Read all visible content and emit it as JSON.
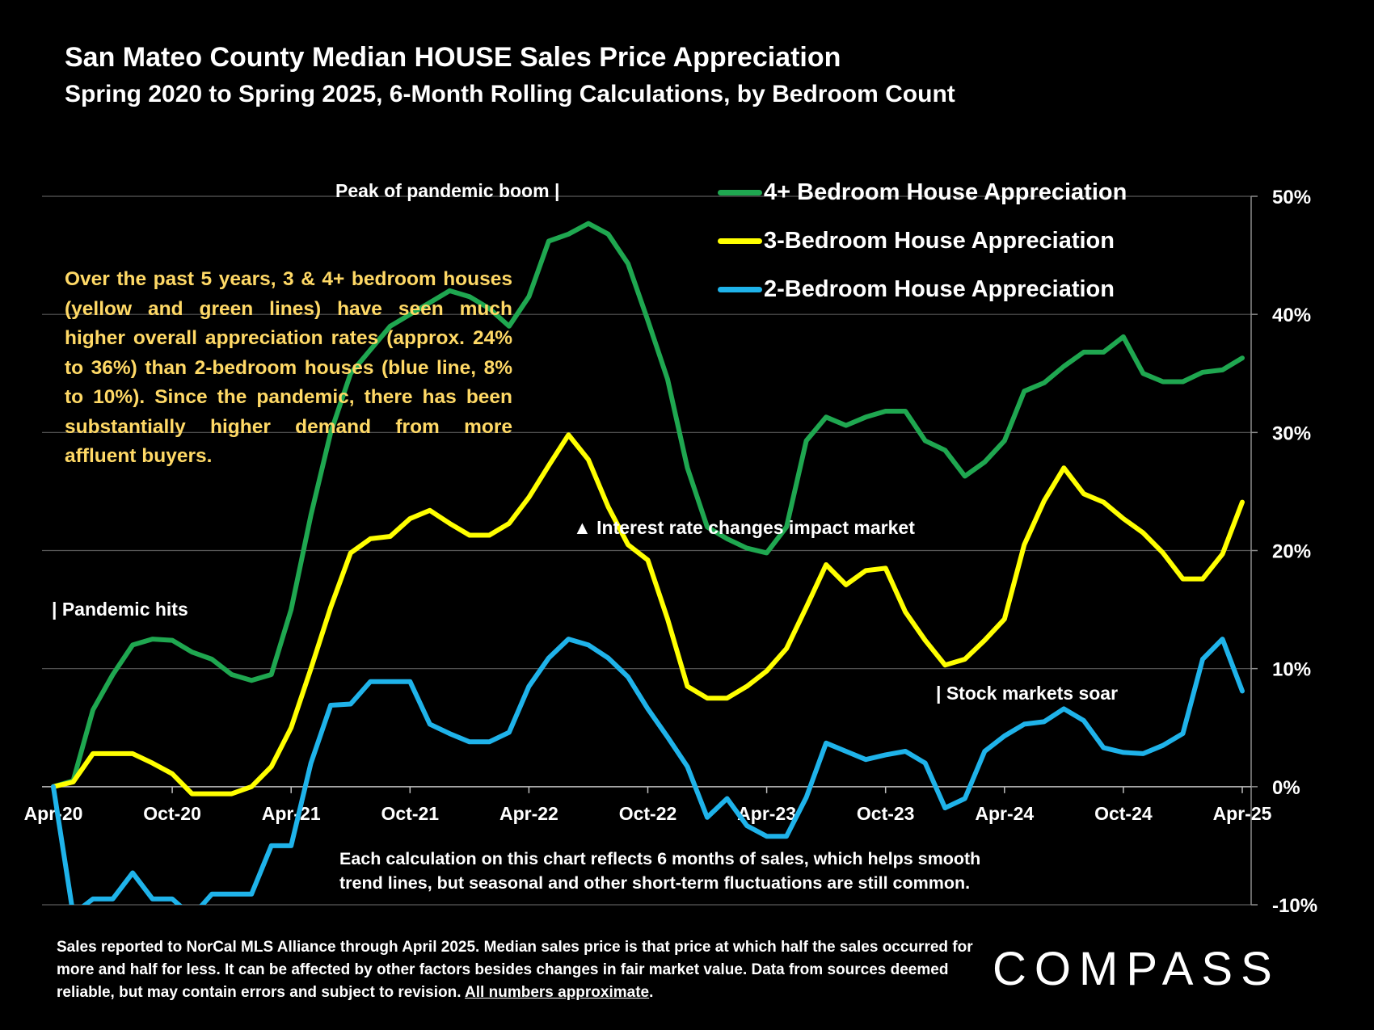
{
  "title": "San Mateo County Median HOUSE Sales Price Appreciation",
  "subtitle": "Spring 2020 to Spring 2025, 6-Month Rolling Calculations, by Bedroom Count",
  "annotations": {
    "peak": "Peak of pandemic boom   |",
    "pandemic": "| Pandemic hits",
    "interest": "▲ Interest rate changes impact market",
    "stock": "| Stock markets soar"
  },
  "callout": "Over the past 5 years, 3 & 4+ bedroom houses (yellow and green lines) have seen much higher overall appreciation rates (approx. 24% to 36%) than 2-bedroom houses (blue line, 8% to 10%). Since the pandemic, there has been substantially higher demand from more affluent buyers.",
  "note": "Each calculation on this chart reflects 6 months of sales, which helps smooth trend lines, but seasonal and other short-term fluctuations are still common.",
  "footnote": {
    "text": "Sales reported to NorCal MLS Alliance through April 2025. Median sales price is that price at which half the sales occurred for more and half for less. It can be affected by other factors besides changes in fair market value. Data from sources deemed reliable, but may contain errors and subject to revision.",
    "underlined": "All numbers approximate",
    "end": "."
  },
  "logo": "COMPASS",
  "chart_data": {
    "type": "line",
    "x": [
      "Apr-20",
      "May-20",
      "Jun-20",
      "Jul-20",
      "Aug-20",
      "Sep-20",
      "Oct-20",
      "Nov-20",
      "Dec-20",
      "Jan-21",
      "Feb-21",
      "Mar-21",
      "Apr-21",
      "May-21",
      "Jun-21",
      "Jul-21",
      "Aug-21",
      "Sep-21",
      "Oct-21",
      "Nov-21",
      "Dec-21",
      "Jan-22",
      "Feb-22",
      "Mar-22",
      "Apr-22",
      "May-22",
      "Jun-22",
      "Jul-22",
      "Aug-22",
      "Sep-22",
      "Oct-22",
      "Nov-22",
      "Dec-22",
      "Jan-23",
      "Feb-23",
      "Mar-23",
      "Apr-23",
      "May-23",
      "Jun-23",
      "Jul-23",
      "Aug-23",
      "Sep-23",
      "Oct-23",
      "Nov-23",
      "Dec-23",
      "Jan-24",
      "Feb-24",
      "Mar-24",
      "Apr-24",
      "May-24",
      "Jun-24",
      "Jul-24",
      "Aug-24",
      "Sep-24",
      "Oct-24",
      "Nov-24",
      "Dec-24",
      "Jan-25",
      "Feb-25",
      "Mar-25",
      "Apr-25"
    ],
    "x_tick_labels": [
      "Apr-20",
      "Oct-20",
      "Apr-21",
      "Oct-21",
      "Apr-22",
      "Oct-22",
      "Apr-23",
      "Oct-23",
      "Apr-24",
      "Oct-24",
      "Apr-25"
    ],
    "y_tick_labels": [
      "50%",
      "40%",
      "30%",
      "20%",
      "10%",
      "0%",
      "-10%"
    ],
    "ylim": [
      -10,
      50
    ],
    "y_ticks": [
      50,
      40,
      30,
      20,
      10,
      0,
      -10
    ],
    "series": [
      {
        "name": "4+ Bedroom House Appreciation",
        "color": "#1fa750",
        "values": [
          0,
          0.5,
          6.5,
          9.5,
          12,
          12.5,
          12.4,
          11.4,
          10.8,
          9.5,
          9,
          9.5,
          15,
          23,
          30,
          35,
          37,
          39,
          40,
          41,
          42,
          41.5,
          40.5,
          39,
          41.5,
          46.2,
          46.8,
          47.7,
          46.8,
          44.3,
          39.5,
          34.5,
          27,
          22,
          21,
          20.2,
          19.8,
          22,
          29.3,
          31.3,
          30.6,
          31.3,
          31.8,
          31.8,
          29.3,
          28.5,
          26.3,
          27.5,
          29.3,
          33.5,
          34.2,
          35.6,
          36.8,
          36.8,
          38.1,
          35,
          34.3,
          34.3,
          35.1,
          35.3,
          36.3
        ]
      },
      {
        "name": "3-Bedroom House Appreciation",
        "color": "#ffff00",
        "values": [
          0,
          0.4,
          2.8,
          2.8,
          2.8,
          2,
          1.1,
          -0.6,
          -0.6,
          -0.6,
          0,
          1.7,
          5,
          10,
          15.2,
          19.8,
          21,
          21.2,
          22.7,
          23.4,
          22.3,
          21.3,
          21.3,
          22.3,
          24.5,
          27.2,
          29.8,
          27.7,
          23.7,
          20.5,
          19.2,
          14.2,
          8.5,
          7.5,
          7.5,
          8.5,
          9.8,
          11.7,
          15.2,
          18.8,
          17.1,
          18.3,
          18.5,
          14.8,
          12.4,
          10.3,
          10.8,
          12.4,
          14.2,
          20.5,
          24.2,
          27,
          24.8,
          24.1,
          22.7,
          21.5,
          19.8,
          17.6,
          17.6,
          19.7,
          24.1
        ]
      },
      {
        "name": "2-Bedroom House Appreciation",
        "color": "#1fb3ea",
        "values": [
          0,
          -10.8,
          -9.5,
          -9.5,
          -7.3,
          -9.5,
          -9.5,
          -11,
          -9.1,
          -9.1,
          -9.1,
          -5,
          -5,
          2,
          6.9,
          7,
          8.9,
          8.9,
          8.9,
          5.3,
          4.5,
          3.8,
          3.8,
          4.6,
          8.5,
          10.9,
          12.5,
          12,
          10.9,
          9.3,
          6.6,
          4.2,
          1.7,
          -2.6,
          -1,
          -3.3,
          -4.2,
          -4.2,
          -0.9,
          3.7,
          3,
          2.3,
          2.7,
          3,
          2,
          -1.8,
          -1,
          3,
          4.3,
          5.3,
          5.5,
          6.6,
          5.6,
          3.3,
          2.9,
          2.8,
          3.5,
          4.5,
          10.8,
          12.5,
          8.1
        ]
      }
    ],
    "legend_position": "top-right",
    "y_axis_position": "right",
    "grid": true
  }
}
